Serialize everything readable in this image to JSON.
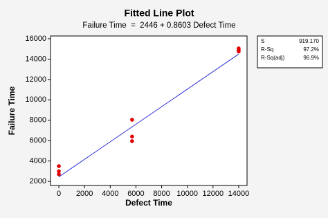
{
  "chart_data": {
    "type": "scatter",
    "title": "Fitted Line Plot",
    "subtitle": "Failure Time  =  2446 + 0.8603 Defect Time",
    "x_label": "Defect Time",
    "y_label": "Failure Time",
    "x": [
      0,
      0,
      0,
      5700,
      5700,
      5700,
      14000,
      14000,
      14000
    ],
    "values": [
      3500,
      3000,
      2700,
      8050,
      6400,
      5950,
      15050,
      14900,
      14750
    ],
    "color": "#e00000",
    "fit_line": {
      "x": [
        0,
        14000
      ],
      "values": [
        2446,
        14490.2
      ],
      "color": "#2a2ad6"
    },
    "xlim": [
      -650,
      14650
    ],
    "ylim": [
      1600,
      16270
    ],
    "xticks": [
      0,
      2000,
      4000,
      6000,
      8000,
      10000,
      12000,
      14000
    ],
    "yticks": [
      2000,
      4000,
      6000,
      8000,
      10000,
      12000,
      14000,
      16000
    ],
    "grid": false,
    "stats": [
      [
        "S",
        "919.170"
      ],
      [
        "R-Sq",
        "97.2%"
      ],
      [
        "R-Sq(adj)",
        "96.9%"
      ]
    ]
  }
}
